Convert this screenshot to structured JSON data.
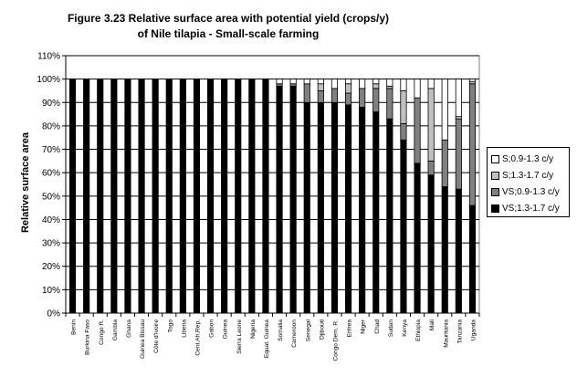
{
  "chart_data": {
    "type": "bar",
    "stacked": true,
    "title": "Figure 3.23 Relative surface area with potential yield (crops/y)",
    "subtitle": "of Nile tilapia - Small-scale farming",
    "xlabel": "",
    "ylabel": "Relative surface area",
    "ylim": [
      0,
      110
    ],
    "yticks": [
      "0%",
      "10%",
      "20%",
      "30%",
      "40%",
      "50%",
      "60%",
      "70%",
      "80%",
      "90%",
      "100%",
      "110%"
    ],
    "grid": true,
    "legend_position": "right",
    "categories": [
      "Benin",
      "Burkina Faso",
      "Congo R.",
      "Gambia",
      "Ghana",
      "Guinea Bissau",
      "Côte d'Ivoire",
      "Togo",
      "Liberia",
      "Cent.Afr.Rep.",
      "Gabon",
      "Guinea",
      "Sierra Leone",
      "Nigeria",
      "Equat. Guinea",
      "Somalia",
      "Cameroon",
      "Senegal",
      "Djibouti",
      "Congo Dem. R.",
      "Eritrea",
      "Niger",
      "Chad",
      "Sudan",
      "Kenya",
      "Ethiopia",
      "Mali",
      "Mauritania",
      "Tanzania",
      "Uganda"
    ],
    "series": [
      {
        "name": "VS;1.3-1.7 c/y",
        "color": "#000000",
        "values": [
          100,
          100,
          100,
          100,
          100,
          100,
          100,
          100,
          100,
          100,
          100,
          100,
          100,
          100,
          100,
          97,
          97,
          90,
          90,
          90,
          89,
          88,
          86,
          83,
          74,
          64,
          59,
          54,
          53,
          46
        ]
      },
      {
        "name": "VS;0.9-1.3 c/y",
        "color": "#808080",
        "values": [
          0,
          0,
          0,
          0,
          0,
          0,
          0,
          0,
          0,
          0,
          0,
          0,
          0,
          0,
          0,
          1,
          1,
          8,
          5,
          6,
          5,
          8,
          10,
          13,
          7,
          28,
          6,
          20,
          30,
          52
        ]
      },
      {
        "name": "S;1.3-1.7 c/y",
        "color": "#c0c0c0",
        "values": [
          0,
          0,
          0,
          0,
          0,
          0,
          0,
          0,
          0,
          0,
          0,
          0,
          0,
          0,
          0,
          0,
          0,
          0,
          3,
          0,
          4,
          0,
          2,
          1,
          14,
          0,
          31,
          0,
          1,
          1
        ]
      },
      {
        "name": "S;0.9-1.3 c/y",
        "color": "#ffffff",
        "values": [
          0,
          0,
          0,
          0,
          0,
          0,
          0,
          0,
          0,
          0,
          0,
          0,
          0,
          0,
          0,
          2,
          2,
          2,
          2,
          4,
          2,
          4,
          2,
          3,
          5,
          8,
          4,
          26,
          16,
          1
        ]
      }
    ],
    "legend_order": [
      "S;0.9-1.3 c/y",
      "S;1.3-1.7 c/y",
      "VS;0.9-1.3 c/y",
      "VS;1.3-1.7 c/y"
    ]
  }
}
